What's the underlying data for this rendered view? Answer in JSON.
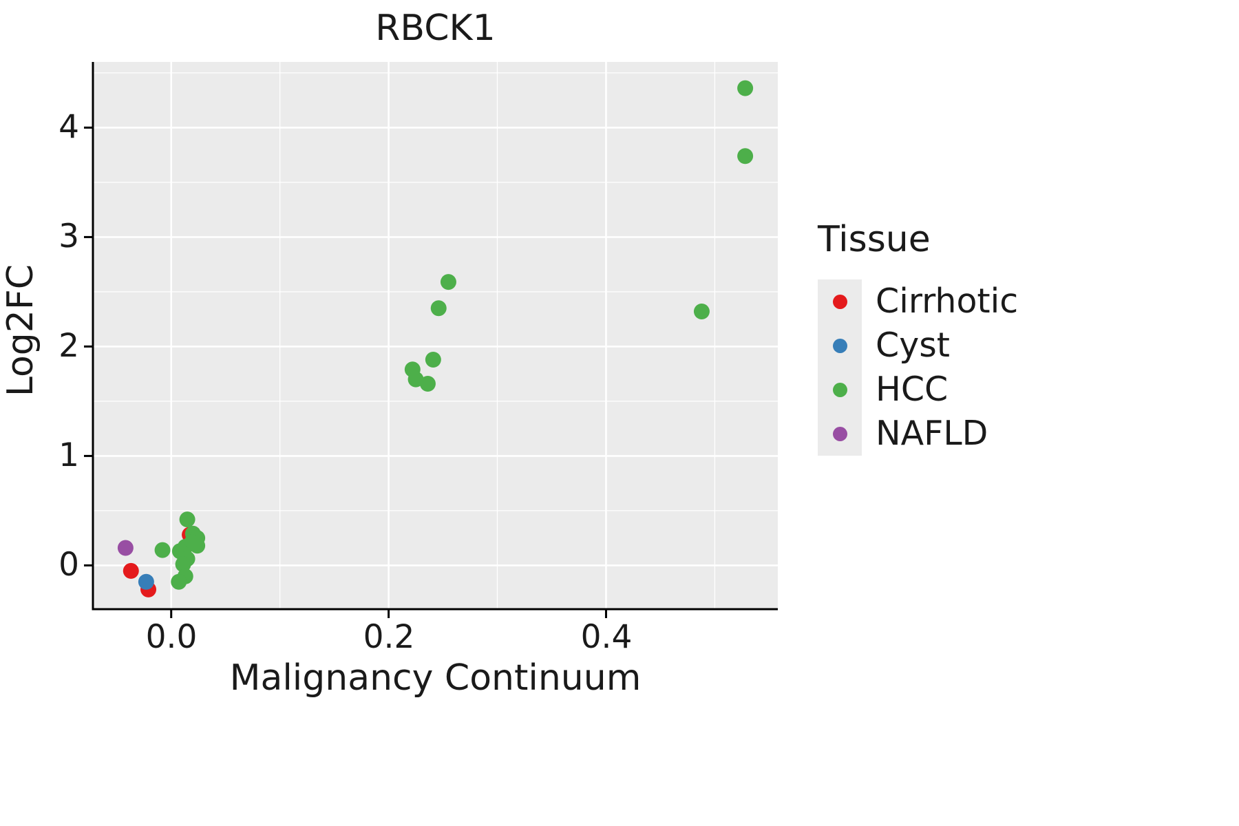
{
  "title": "RBCK1",
  "axes": {
    "xlabel": "Malignancy Continuum",
    "ylabel": "Log2FC"
  },
  "legend": {
    "title": "Tissue",
    "items": [
      {
        "label": "Cirrhotic",
        "color": "#e41a1c"
      },
      {
        "label": "Cyst",
        "color": "#377eb8"
      },
      {
        "label": "HCC",
        "color": "#4daf4a"
      },
      {
        "label": "NAFLD",
        "color": "#984ea3"
      }
    ]
  },
  "chart_data": {
    "type": "scatter",
    "title": "RBCK1",
    "xlabel": "Malignancy Continuum",
    "ylabel": "Log2FC",
    "xlim": [
      -0.072,
      0.558
    ],
    "ylim": [
      -0.4,
      4.6
    ],
    "x_ticks": [
      0.0,
      0.2,
      0.4
    ],
    "y_ticks": [
      0,
      1,
      2,
      3,
      4
    ],
    "x_tick_labels": [
      "0.0",
      "0.2",
      "0.4"
    ],
    "y_tick_labels": [
      "0",
      "1",
      "2",
      "3",
      "4"
    ],
    "x_minor_ticks": [
      0.1,
      0.3,
      0.5
    ],
    "y_minor_ticks": [
      0.5,
      1.5,
      2.5,
      3.5,
      4.5
    ],
    "grid": true,
    "panel_background": "#ebebeb",
    "grid_color": "#ffffff",
    "legend_position": "right",
    "series": [
      {
        "name": "Cirrhotic",
        "color": "#e41a1c",
        "points": [
          [
            -0.037,
            -0.05
          ],
          [
            -0.021,
            -0.22
          ],
          [
            0.017,
            0.28
          ]
        ]
      },
      {
        "name": "Cyst",
        "color": "#377eb8",
        "points": [
          [
            -0.023,
            -0.15
          ]
        ]
      },
      {
        "name": "HCC",
        "color": "#4daf4a",
        "points": [
          [
            0.528,
            4.36
          ],
          [
            0.528,
            3.74
          ],
          [
            0.255,
            2.59
          ],
          [
            0.246,
            2.35
          ],
          [
            0.488,
            2.32
          ],
          [
            0.241,
            1.88
          ],
          [
            0.222,
            1.79
          ],
          [
            0.225,
            1.7
          ],
          [
            0.236,
            1.66
          ],
          [
            0.0148,
            0.42
          ],
          [
            0.02,
            0.29
          ],
          [
            0.024,
            0.25
          ],
          [
            0.019,
            0.21
          ],
          [
            0.024,
            0.18
          ],
          [
            0.013,
            0.17
          ],
          [
            -0.008,
            0.14
          ],
          [
            0.008,
            0.13
          ],
          [
            0.0116,
            0.1
          ],
          [
            0.0148,
            0.06
          ],
          [
            0.011,
            0.01
          ],
          [
            0.013,
            -0.1
          ],
          [
            0.007,
            -0.15
          ]
        ]
      },
      {
        "name": "NAFLD",
        "color": "#984ea3",
        "points": [
          [
            -0.042,
            0.16
          ]
        ]
      }
    ]
  }
}
